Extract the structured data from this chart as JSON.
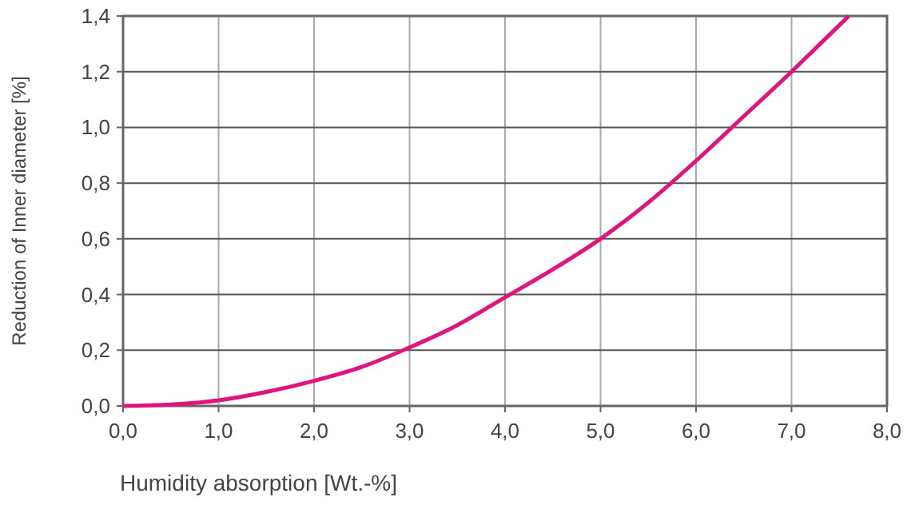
{
  "chart_data": {
    "type": "line",
    "xlabel": "Humidity absorption [Wt.-%]",
    "ylabel": "Reduction of Inner diameter [%]",
    "xlim": [
      0,
      8
    ],
    "ylim": [
      0,
      1.4
    ],
    "xticks": [
      {
        "value": 0,
        "label": "0,0"
      },
      {
        "value": 1,
        "label": "1,0"
      },
      {
        "value": 2,
        "label": "2,0"
      },
      {
        "value": 3,
        "label": "3,0"
      },
      {
        "value": 4,
        "label": "4,0"
      },
      {
        "value": 5,
        "label": "5,0"
      },
      {
        "value": 6,
        "label": "6,0"
      },
      {
        "value": 7,
        "label": "7,0"
      },
      {
        "value": 8,
        "label": "8,0"
      }
    ],
    "yticks": [
      {
        "value": 0,
        "label": "0,0"
      },
      {
        "value": 0.2,
        "label": "0,2"
      },
      {
        "value": 0.4,
        "label": "0,4"
      },
      {
        "value": 0.6,
        "label": "0,6"
      },
      {
        "value": 0.8,
        "label": "0,8"
      },
      {
        "value": 1,
        "label": "1,0"
      },
      {
        "value": 1.2,
        "label": "1,2"
      },
      {
        "value": 1.4,
        "label": "1,4"
      }
    ],
    "grid": true,
    "series": [
      {
        "color": "#e0147f",
        "x": [
          0,
          0.5,
          1,
          1.5,
          2,
          2.5,
          3,
          3.5,
          4,
          4.5,
          5,
          5.5,
          6,
          6.5,
          7,
          7.3,
          7.6
        ],
        "values": [
          0,
          0.005,
          0.02,
          0.05,
          0.09,
          0.14,
          0.21,
          0.29,
          0.39,
          0.49,
          0.6,
          0.73,
          0.88,
          1.04,
          1.2,
          1.3,
          1.4
        ]
      }
    ]
  }
}
